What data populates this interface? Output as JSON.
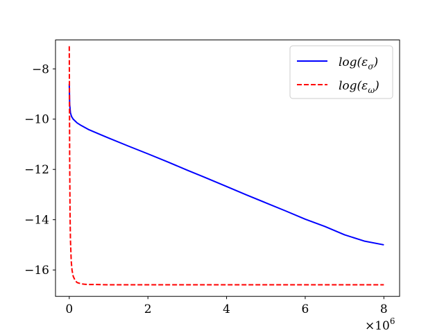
{
  "chart_data": {
    "type": "line",
    "title": "",
    "xlabel": "",
    "ylabel": "",
    "x_multiplier_label": "×10",
    "x_multiplier_exponent": "6",
    "x_scale_factor": 1000000,
    "xlim": [
      -0.35,
      8.4
    ],
    "ylim": [
      -17.05,
      -6.85
    ],
    "x_ticks": [
      0,
      2,
      4,
      6,
      8
    ],
    "y_ticks": [
      -16,
      -14,
      -12,
      -10,
      -8
    ],
    "x_tick_labels": [
      "0",
      "2",
      "4",
      "6",
      "8"
    ],
    "y_tick_labels": [
      "−16",
      "−14",
      "−12",
      "−10",
      "−8"
    ],
    "grid": false,
    "legend_position": "top-right",
    "series": [
      {
        "name": "log(εσ)",
        "legend_label": "log(ε",
        "legend_sub": "σ",
        "color": "#0000ff",
        "style": "solid",
        "x": [
          0.0,
          0.01,
          0.03,
          0.06,
          0.1,
          0.2,
          0.3,
          0.5,
          0.8,
          1.0,
          1.5,
          2.0,
          2.5,
          3.0,
          3.5,
          4.0,
          4.5,
          5.0,
          5.5,
          6.0,
          6.5,
          7.0,
          7.5,
          8.0
        ],
        "y": [
          -8.6,
          -9.4,
          -9.75,
          -9.9,
          -10.0,
          -10.15,
          -10.25,
          -10.42,
          -10.62,
          -10.75,
          -11.07,
          -11.38,
          -11.7,
          -12.03,
          -12.35,
          -12.68,
          -13.01,
          -13.33,
          -13.65,
          -13.98,
          -14.27,
          -14.6,
          -14.85,
          -15.0
        ]
      },
      {
        "name": "log(εω)",
        "legend_label": "log(ε",
        "legend_sub": "ω",
        "color": "#ff0000",
        "style": "dashed",
        "x": [
          0.0,
          0.005,
          0.01,
          0.02,
          0.03,
          0.05,
          0.07,
          0.1,
          0.15,
          0.2,
          0.3,
          0.4,
          0.5,
          0.7,
          1.0,
          2.0,
          3.0,
          4.0,
          5.0,
          6.0,
          7.0,
          8.0
        ],
        "y": [
          -7.1,
          -9.0,
          -11.5,
          -13.8,
          -14.8,
          -15.65,
          -16.0,
          -16.25,
          -16.42,
          -16.5,
          -16.55,
          -16.57,
          -16.58,
          -16.58,
          -16.59,
          -16.59,
          -16.59,
          -16.59,
          -16.59,
          -16.59,
          -16.59,
          -16.59
        ]
      }
    ]
  }
}
